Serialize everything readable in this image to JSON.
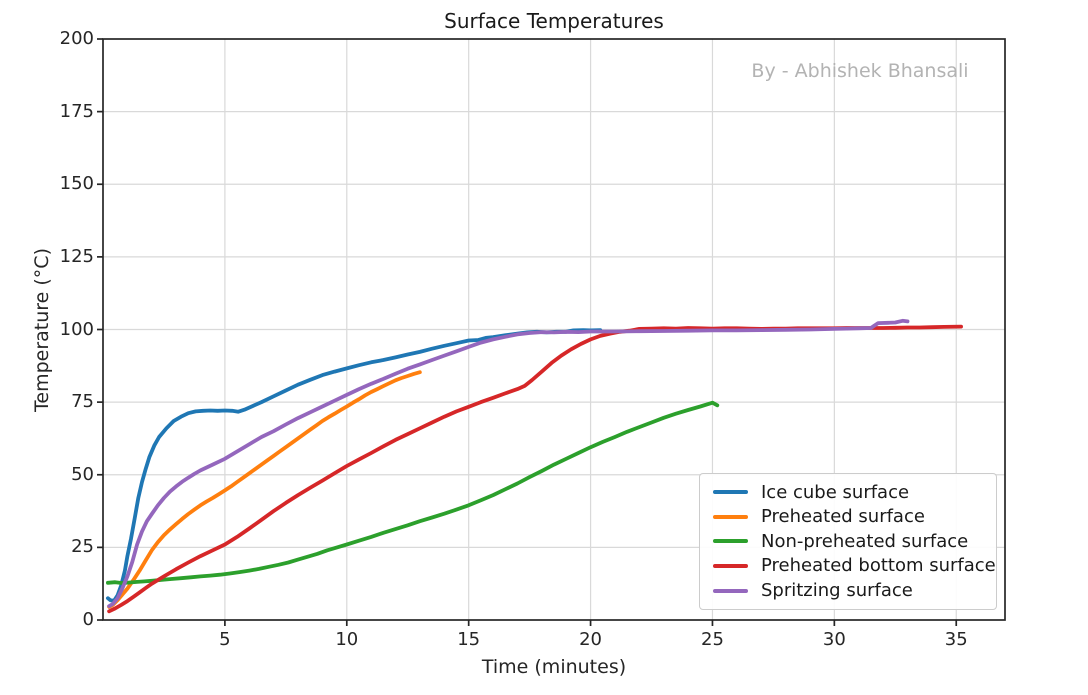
{
  "watermark": "By - Abhishek Bhansali",
  "colors": {
    "grid": "#d9d9d9",
    "spine": "#262626",
    "tick_label": "#262626",
    "title_text": "#1a1a1a",
    "watermark_text": "#b3b3b3",
    "legend_border": "#cccccc"
  },
  "chart_data": {
    "type": "line",
    "title": "Surface Temperatures",
    "xlabel": "Time (minutes)",
    "ylabel": "Temperature (°C)",
    "xlim": [
      0,
      37
    ],
    "ylim": [
      0,
      200
    ],
    "xticks": [
      5,
      10,
      15,
      20,
      25,
      30,
      35
    ],
    "yticks": [
      0,
      25,
      50,
      75,
      100,
      125,
      150,
      175,
      200
    ],
    "grid": true,
    "legend_position": "lower right",
    "series": [
      {
        "name": "Ice cube surface",
        "color": "#1f77b4",
        "points": [
          [
            0.2,
            7.5
          ],
          [
            0.3,
            6.8
          ],
          [
            0.45,
            6.6
          ],
          [
            0.6,
            8.5
          ],
          [
            0.75,
            12
          ],
          [
            0.9,
            17
          ],
          [
            1.0,
            22
          ],
          [
            1.15,
            28
          ],
          [
            1.3,
            35
          ],
          [
            1.45,
            42
          ],
          [
            1.6,
            47.5
          ],
          [
            1.75,
            52
          ],
          [
            1.9,
            56
          ],
          [
            2.1,
            60
          ],
          [
            2.3,
            63
          ],
          [
            2.6,
            66
          ],
          [
            2.9,
            68.5
          ],
          [
            3.2,
            70
          ],
          [
            3.5,
            71.2
          ],
          [
            3.8,
            71.8
          ],
          [
            4.1,
            72
          ],
          [
            4.4,
            72.1
          ],
          [
            4.7,
            72
          ],
          [
            5.0,
            72.1
          ],
          [
            5.3,
            72
          ],
          [
            5.55,
            71.7
          ],
          [
            5.8,
            72.4
          ],
          [
            6.1,
            73.5
          ],
          [
            6.5,
            75
          ],
          [
            7.0,
            77
          ],
          [
            7.5,
            79
          ],
          [
            8.0,
            81
          ],
          [
            8.5,
            82.7
          ],
          [
            9.0,
            84.3
          ],
          [
            9.5,
            85.5
          ],
          [
            10.0,
            86.6
          ],
          [
            10.5,
            87.7
          ],
          [
            11.0,
            88.7
          ],
          [
            11.5,
            89.5
          ],
          [
            12.0,
            90.4
          ],
          [
            12.5,
            91.4
          ],
          [
            13.0,
            92.3
          ],
          [
            13.5,
            93.4
          ],
          [
            14.0,
            94.4
          ],
          [
            14.5,
            95.3
          ],
          [
            15.0,
            96.2
          ],
          [
            15.4,
            96.4
          ],
          [
            15.7,
            97.1
          ],
          [
            16.0,
            97.4
          ],
          [
            16.5,
            98.0
          ],
          [
            17.0,
            98.6
          ],
          [
            17.4,
            99.0
          ],
          [
            17.8,
            99.2
          ],
          [
            18.2,
            99.0
          ],
          [
            18.6,
            99.2
          ],
          [
            19.0,
            99.2
          ],
          [
            19.3,
            99.7
          ],
          [
            19.7,
            99.8
          ],
          [
            20.0,
            99.7
          ],
          [
            20.4,
            99.8
          ]
        ]
      },
      {
        "name": "Preheated surface",
        "color": "#ff7f0e",
        "points": [
          [
            0.25,
            4.5
          ],
          [
            0.4,
            5.2
          ],
          [
            0.6,
            6.8
          ],
          [
            0.8,
            8.8
          ],
          [
            1.0,
            10.8
          ],
          [
            1.25,
            13.8
          ],
          [
            1.5,
            17
          ],
          [
            1.75,
            20.5
          ],
          [
            2.0,
            24
          ],
          [
            2.25,
            26.8
          ],
          [
            2.5,
            29.2
          ],
          [
            2.75,
            31.2
          ],
          [
            3.0,
            33
          ],
          [
            3.25,
            34.8
          ],
          [
            3.5,
            36.5
          ],
          [
            3.75,
            38
          ],
          [
            4.0,
            39.5
          ],
          [
            4.25,
            40.8
          ],
          [
            4.5,
            42
          ],
          [
            4.75,
            43.3
          ],
          [
            5.0,
            44.6
          ],
          [
            5.25,
            46
          ],
          [
            5.5,
            47.5
          ],
          [
            5.75,
            49
          ],
          [
            6.0,
            50.5
          ],
          [
            6.25,
            52
          ],
          [
            6.5,
            53.5
          ],
          [
            6.75,
            55
          ],
          [
            7.0,
            56.5
          ],
          [
            7.25,
            58
          ],
          [
            7.5,
            59.5
          ],
          [
            7.75,
            61
          ],
          [
            8.0,
            62.5
          ],
          [
            8.25,
            64
          ],
          [
            8.5,
            65.5
          ],
          [
            8.75,
            67
          ],
          [
            9.0,
            68.5
          ],
          [
            9.25,
            69.8
          ],
          [
            9.5,
            71
          ],
          [
            9.75,
            72.3
          ],
          [
            10.0,
            73.5
          ],
          [
            10.25,
            74.8
          ],
          [
            10.5,
            76
          ],
          [
            10.75,
            77.3
          ],
          [
            11.0,
            78.5
          ],
          [
            11.25,
            79.5
          ],
          [
            11.5,
            80.5
          ],
          [
            11.75,
            81.5
          ],
          [
            12.0,
            82.5
          ],
          [
            12.25,
            83.3
          ],
          [
            12.5,
            84
          ],
          [
            12.75,
            84.7
          ],
          [
            13.0,
            85.3
          ]
        ]
      },
      {
        "name": "Non-preheated surface",
        "color": "#2ca02c",
        "points": [
          [
            0.2,
            12.8
          ],
          [
            0.5,
            13
          ],
          [
            0.8,
            12.7
          ],
          [
            1.1,
            12.9
          ],
          [
            1.4,
            13.1
          ],
          [
            1.7,
            13.3
          ],
          [
            2.0,
            13.5
          ],
          [
            2.4,
            13.8
          ],
          [
            2.8,
            14.1
          ],
          [
            3.2,
            14.4
          ],
          [
            3.6,
            14.7
          ],
          [
            4.0,
            15
          ],
          [
            4.4,
            15.3
          ],
          [
            4.8,
            15.6
          ],
          [
            5.2,
            16
          ],
          [
            5.6,
            16.5
          ],
          [
            6.0,
            17
          ],
          [
            6.4,
            17.6
          ],
          [
            6.8,
            18.3
          ],
          [
            7.2,
            19
          ],
          [
            7.6,
            19.8
          ],
          [
            8.0,
            20.8
          ],
          [
            8.4,
            21.8
          ],
          [
            8.8,
            22.8
          ],
          [
            9.2,
            24
          ],
          [
            9.6,
            25
          ],
          [
            10.0,
            26
          ],
          [
            10.5,
            27.3
          ],
          [
            11.0,
            28.6
          ],
          [
            11.5,
            30
          ],
          [
            12.0,
            31.3
          ],
          [
            12.5,
            32.6
          ],
          [
            13.0,
            34
          ],
          [
            13.5,
            35.3
          ],
          [
            14.0,
            36.6
          ],
          [
            14.5,
            38
          ],
          [
            15.0,
            39.5
          ],
          [
            15.5,
            41.2
          ],
          [
            16.0,
            43
          ],
          [
            16.5,
            45
          ],
          [
            17.0,
            47
          ],
          [
            17.5,
            49.2
          ],
          [
            18.0,
            51.3
          ],
          [
            18.5,
            53.5
          ],
          [
            19.0,
            55.5
          ],
          [
            19.5,
            57.5
          ],
          [
            20.0,
            59.5
          ],
          [
            20.5,
            61.3
          ],
          [
            21.0,
            63
          ],
          [
            21.5,
            64.8
          ],
          [
            22.0,
            66.4
          ],
          [
            22.5,
            68
          ],
          [
            23.0,
            69.6
          ],
          [
            23.5,
            71
          ],
          [
            24.0,
            72.3
          ],
          [
            24.5,
            73.5
          ],
          [
            25.0,
            74.8
          ],
          [
            25.2,
            73.9
          ]
        ]
      },
      {
        "name": "Preheated bottom surface",
        "color": "#d62728",
        "points": [
          [
            0.25,
            3
          ],
          [
            0.5,
            4
          ],
          [
            0.75,
            5.2
          ],
          [
            1.0,
            6.5
          ],
          [
            1.25,
            8
          ],
          [
            1.5,
            9.5
          ],
          [
            1.75,
            11
          ],
          [
            2.0,
            12.5
          ],
          [
            2.5,
            15
          ],
          [
            3.0,
            17.5
          ],
          [
            3.5,
            19.8
          ],
          [
            4.0,
            22
          ],
          [
            4.5,
            24
          ],
          [
            5.0,
            26
          ],
          [
            5.5,
            28.6
          ],
          [
            6.0,
            31.5
          ],
          [
            6.5,
            34.5
          ],
          [
            7.0,
            37.5
          ],
          [
            7.5,
            40.3
          ],
          [
            8.0,
            43
          ],
          [
            8.5,
            45.5
          ],
          [
            9.0,
            48
          ],
          [
            9.5,
            50.5
          ],
          [
            10.0,
            53
          ],
          [
            10.5,
            55.3
          ],
          [
            11.0,
            57.5
          ],
          [
            11.5,
            59.8
          ],
          [
            12.0,
            62
          ],
          [
            12.5,
            64
          ],
          [
            13.0,
            66
          ],
          [
            13.5,
            68
          ],
          [
            14.0,
            70
          ],
          [
            14.5,
            71.8
          ],
          [
            15.0,
            73.4
          ],
          [
            15.5,
            75
          ],
          [
            16.0,
            76.5
          ],
          [
            16.5,
            78
          ],
          [
            17.0,
            79.5
          ],
          [
            17.3,
            80.6
          ],
          [
            17.6,
            82.6
          ],
          [
            18.0,
            85.5
          ],
          [
            18.4,
            88.5
          ],
          [
            18.8,
            91
          ],
          [
            19.2,
            93.2
          ],
          [
            19.6,
            95
          ],
          [
            20.0,
            96.6
          ],
          [
            20.4,
            97.8
          ],
          [
            20.8,
            98.6
          ],
          [
            21.2,
            99.2
          ],
          [
            21.6,
            99.6
          ],
          [
            22.0,
            100.2
          ],
          [
            22.5,
            100.3
          ],
          [
            23.0,
            100.4
          ],
          [
            23.5,
            100.3
          ],
          [
            24.0,
            100.5
          ],
          [
            24.5,
            100.4
          ],
          [
            25.0,
            100.3
          ],
          [
            25.5,
            100.4
          ],
          [
            26.0,
            100.4
          ],
          [
            26.5,
            100.3
          ],
          [
            27.0,
            100.2
          ],
          [
            27.5,
            100.3
          ],
          [
            28.0,
            100.3
          ],
          [
            28.5,
            100.4
          ],
          [
            29.0,
            100.4
          ],
          [
            29.5,
            100.4
          ],
          [
            30.0,
            100.4
          ],
          [
            30.5,
            100.5
          ],
          [
            31.0,
            100.5
          ],
          [
            31.5,
            100.5
          ],
          [
            32.0,
            100.5
          ],
          [
            32.5,
            100.6
          ],
          [
            33.0,
            100.7
          ],
          [
            33.5,
            100.7
          ],
          [
            34.0,
            100.8
          ],
          [
            34.5,
            100.9
          ],
          [
            35.2,
            101
          ]
        ]
      },
      {
        "name": "Spritzing surface",
        "color": "#9467bd",
        "points": [
          [
            0.25,
            4.8
          ],
          [
            0.4,
            5.5
          ],
          [
            0.6,
            7.5
          ],
          [
            0.8,
            11
          ],
          [
            1.0,
            15
          ],
          [
            1.2,
            20
          ],
          [
            1.4,
            26
          ],
          [
            1.6,
            30.5
          ],
          [
            1.8,
            34
          ],
          [
            2.0,
            36.5
          ],
          [
            2.25,
            39.5
          ],
          [
            2.5,
            42
          ],
          [
            2.75,
            44.2
          ],
          [
            3.0,
            46
          ],
          [
            3.25,
            47.6
          ],
          [
            3.5,
            49
          ],
          [
            3.75,
            50.3
          ],
          [
            4.0,
            51.5
          ],
          [
            4.5,
            53.5
          ],
          [
            5.0,
            55.5
          ],
          [
            5.5,
            58
          ],
          [
            6.0,
            60.5
          ],
          [
            6.5,
            63
          ],
          [
            7.0,
            65
          ],
          [
            7.5,
            67.3
          ],
          [
            8.0,
            69.5
          ],
          [
            8.5,
            71.5
          ],
          [
            9.0,
            73.5
          ],
          [
            9.5,
            75.5
          ],
          [
            10.0,
            77.5
          ],
          [
            10.5,
            79.5
          ],
          [
            11.0,
            81.3
          ],
          [
            11.5,
            83
          ],
          [
            12.0,
            84.8
          ],
          [
            12.5,
            86.5
          ],
          [
            13.0,
            88
          ],
          [
            13.5,
            89.5
          ],
          [
            14.0,
            91
          ],
          [
            14.5,
            92.5
          ],
          [
            15.0,
            94
          ],
          [
            15.5,
            95.5
          ],
          [
            16.0,
            96.6
          ],
          [
            16.5,
            97.5
          ],
          [
            17.0,
            98.3
          ],
          [
            17.5,
            98.8
          ],
          [
            18.0,
            99.1
          ],
          [
            18.5,
            99.0
          ],
          [
            19.0,
            99.2
          ],
          [
            19.5,
            99.1
          ],
          [
            20.0,
            99.3
          ],
          [
            21.0,
            99.3
          ],
          [
            22.0,
            99.4
          ],
          [
            23.0,
            99.5
          ],
          [
            24.0,
            99.6
          ],
          [
            25.0,
            99.7
          ],
          [
            26.0,
            99.7
          ],
          [
            27.0,
            99.8
          ],
          [
            28.0,
            99.9
          ],
          [
            29.0,
            100.0
          ],
          [
            30.0,
            100.2
          ],
          [
            30.5,
            100.3
          ],
          [
            31.0,
            100.4
          ],
          [
            31.5,
            100.5
          ],
          [
            31.8,
            102.2
          ],
          [
            32.2,
            102.3
          ],
          [
            32.5,
            102.4
          ],
          [
            32.8,
            103
          ],
          [
            33.0,
            102.8
          ]
        ]
      }
    ]
  }
}
